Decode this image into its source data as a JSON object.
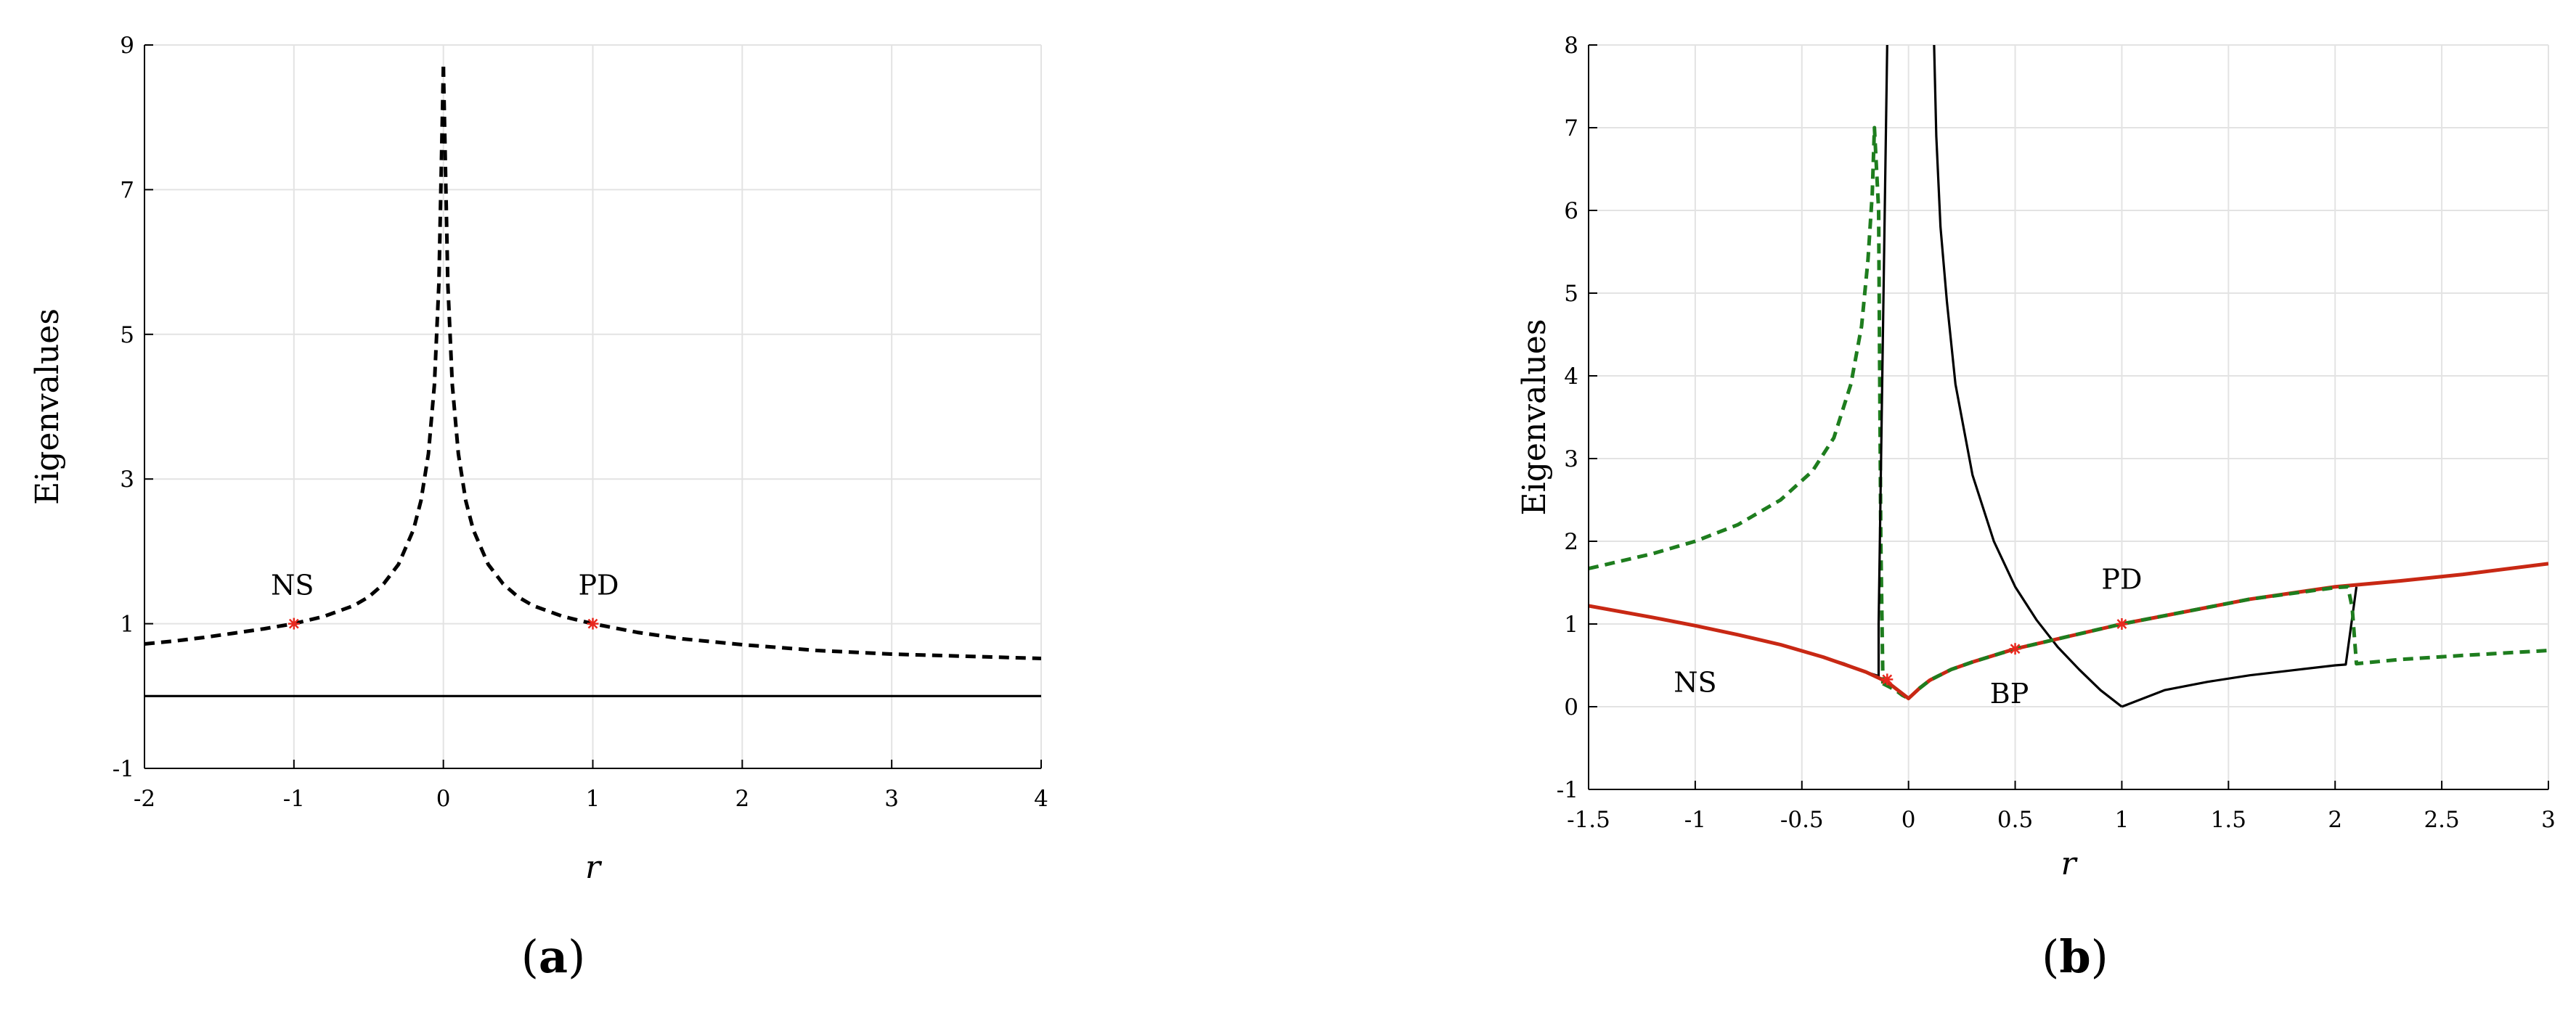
{
  "chart_data": [
    {
      "type": "line",
      "panel_label_open": "(",
      "panel_label_letter": "a",
      "panel_label_close": ")",
      "xlabel": "r",
      "ylabel": "Eigenvalues",
      "xlim": [
        -2,
        4
      ],
      "ylim": [
        -1,
        9
      ],
      "xticks": [
        -2,
        -1,
        0,
        1,
        2,
        3,
        4
      ],
      "xticklabels": [
        "-2",
        "-1",
        "0",
        "1",
        "2",
        "3",
        "4"
      ],
      "yticks": [
        -1,
        1,
        3,
        5,
        7,
        9
      ],
      "yticklabels": [
        "-1",
        "1",
        "3",
        "5",
        "7",
        "9"
      ],
      "grid": true,
      "series": [
        {
          "style": "dashed",
          "color": "#000000",
          "x": [
            -2,
            -1.8,
            -1.6,
            -1.4,
            -1.2,
            -1,
            -0.8,
            -0.6,
            -0.5,
            -0.4,
            -0.3,
            -0.2,
            -0.15,
            -0.1,
            -0.06,
            -0.03,
            0
          ],
          "y": [
            0.72,
            0.76,
            0.81,
            0.87,
            0.93,
            1.0,
            1.1,
            1.25,
            1.37,
            1.55,
            1.82,
            2.3,
            2.7,
            3.35,
            4.3,
            5.7,
            8.7
          ]
        },
        {
          "style": "dashed",
          "color": "#000000",
          "x": [
            0,
            0.03,
            0.06,
            0.1,
            0.15,
            0.2,
            0.3,
            0.4,
            0.5,
            0.6,
            0.8,
            1.0,
            1.3,
            1.6,
            2.0,
            2.5,
            3.0,
            3.5,
            4.0
          ],
          "y": [
            8.7,
            5.7,
            4.3,
            3.35,
            2.7,
            2.3,
            1.82,
            1.55,
            1.37,
            1.25,
            1.1,
            1.0,
            0.88,
            0.79,
            0.71,
            0.63,
            0.58,
            0.55,
            0.52
          ]
        },
        {
          "style": "solid",
          "color": "#000000",
          "x": [
            -2,
            4
          ],
          "y": [
            0,
            0
          ]
        }
      ],
      "markers": [
        {
          "x": -1,
          "y": 1,
          "color": "#e8281e"
        },
        {
          "x": 1,
          "y": 1,
          "color": "#e8281e"
        }
      ],
      "annotations": [
        {
          "text": "NS",
          "x": -1,
          "y": 1
        },
        {
          "text": "PD",
          "x": 1,
          "y": 1
        }
      ]
    },
    {
      "type": "line",
      "panel_label_open": "(",
      "panel_label_letter": "b",
      "panel_label_close": ")",
      "xlabel": "r",
      "ylabel": "Eigenvalues",
      "xlim": [
        -1.5,
        3
      ],
      "ylim": [
        -1,
        8
      ],
      "xticks": [
        -1.5,
        -1,
        -0.5,
        0,
        0.5,
        1,
        1.5,
        2,
        2.5,
        3
      ],
      "xticklabels": [
        "-1.5",
        "-1",
        "-0.5",
        "0",
        "0.5",
        "1",
        "1.5",
        "2",
        "2.5",
        "3"
      ],
      "yticks": [
        -1,
        0,
        1,
        2,
        3,
        4,
        5,
        6,
        7,
        8
      ],
      "yticklabels": [
        "-1",
        "0",
        "1",
        "2",
        "3",
        "4",
        "5",
        "6",
        "7",
        "8"
      ],
      "grid": true,
      "series": [
        {
          "style": "dashed",
          "color": "#1e7d1e",
          "x": [
            -1.5,
            -1.2,
            -1.0,
            -0.8,
            -0.6,
            -0.45,
            -0.35,
            -0.27,
            -0.22,
            -0.19,
            -0.17,
            -0.16,
            -0.14,
            -0.13,
            -0.12
          ],
          "y": [
            1.67,
            1.85,
            2.0,
            2.2,
            2.5,
            2.85,
            3.25,
            3.9,
            4.6,
            5.4,
            6.2,
            7.0,
            6.0,
            2.0,
            0.28
          ]
        },
        {
          "style": "dashed",
          "color": "#1e7d1e",
          "x": [
            -0.12,
            -0.09,
            -0.06,
            -0.03,
            0
          ],
          "y": [
            0.28,
            0.24,
            0.2,
            0.14,
            0.1
          ]
        },
        {
          "style": "solid",
          "color": "#000000",
          "x": [
            -1.5,
            -1.2,
            -1.0,
            -0.8,
            -0.6,
            -0.4,
            -0.3,
            -0.2,
            -0.14,
            -0.14,
            -0.1
          ],
          "y": [
            1.22,
            1.08,
            0.98,
            0.87,
            0.75,
            0.6,
            0.52,
            0.42,
            0.37,
            1.0,
            8.0
          ]
        },
        {
          "style": "solid",
          "color": "#000000",
          "x": [
            0.12,
            0.13,
            0.15,
            0.18,
            0.22,
            0.3,
            0.4,
            0.5,
            0.6,
            0.7,
            0.8,
            0.9,
            1.0
          ],
          "y": [
            8.0,
            6.9,
            5.8,
            4.9,
            3.9,
            2.8,
            2.0,
            1.45,
            1.05,
            0.72,
            0.45,
            0.2,
            0.0
          ]
        },
        {
          "style": "solid",
          "color": "#000000",
          "x": [
            1.0,
            1.2,
            1.4,
            1.6,
            1.8,
            2.0,
            2.05,
            2.1
          ],
          "y": [
            0.0,
            0.2,
            0.3,
            0.38,
            0.44,
            0.5,
            0.51,
            1.45
          ]
        },
        {
          "style": "solid",
          "color": "#c82814",
          "x": [
            -1.5,
            -1.2,
            -1.0,
            -0.8,
            -0.6,
            -0.4,
            -0.2,
            -0.1,
            0,
            0.05,
            0.1,
            0.2,
            0.3,
            0.5,
            0.7,
            1.0,
            1.3,
            1.6,
            2.0,
            2.3,
            2.6,
            3.0
          ],
          "y": [
            1.22,
            1.08,
            0.98,
            0.87,
            0.75,
            0.6,
            0.42,
            0.3,
            0.1,
            0.22,
            0.32,
            0.45,
            0.54,
            0.7,
            0.82,
            1.0,
            1.15,
            1.3,
            1.45,
            1.52,
            1.6,
            1.73
          ]
        },
        {
          "style": "dashed",
          "color": "#1e7d1e",
          "x": [
            0.05,
            0.1,
            0.2,
            0.3,
            0.5,
            0.7,
            1.0,
            1.3,
            1.6,
            2.0,
            2.06,
            2.08,
            2.1,
            2.3,
            2.6,
            3.0
          ],
          "y": [
            0.22,
            0.32,
            0.45,
            0.54,
            0.7,
            0.82,
            1.0,
            1.15,
            1.3,
            1.44,
            1.45,
            1.2,
            0.52,
            0.57,
            0.62,
            0.68
          ]
        }
      ],
      "markers": [
        {
          "x": 0.5,
          "y": 0.7,
          "color": "#e8281e"
        },
        {
          "x": 1,
          "y": 1,
          "color": "#e8281e"
        },
        {
          "x": -0.1,
          "y": 0.33,
          "color": "#e8281e"
        }
      ],
      "annotations": [
        {
          "text": "NS",
          "x": -1,
          "y": 0.6
        },
        {
          "text": "BP",
          "x": 0.5,
          "y": 0.5
        },
        {
          "text": "PD",
          "x": 1,
          "y": 1.25
        }
      ]
    }
  ]
}
